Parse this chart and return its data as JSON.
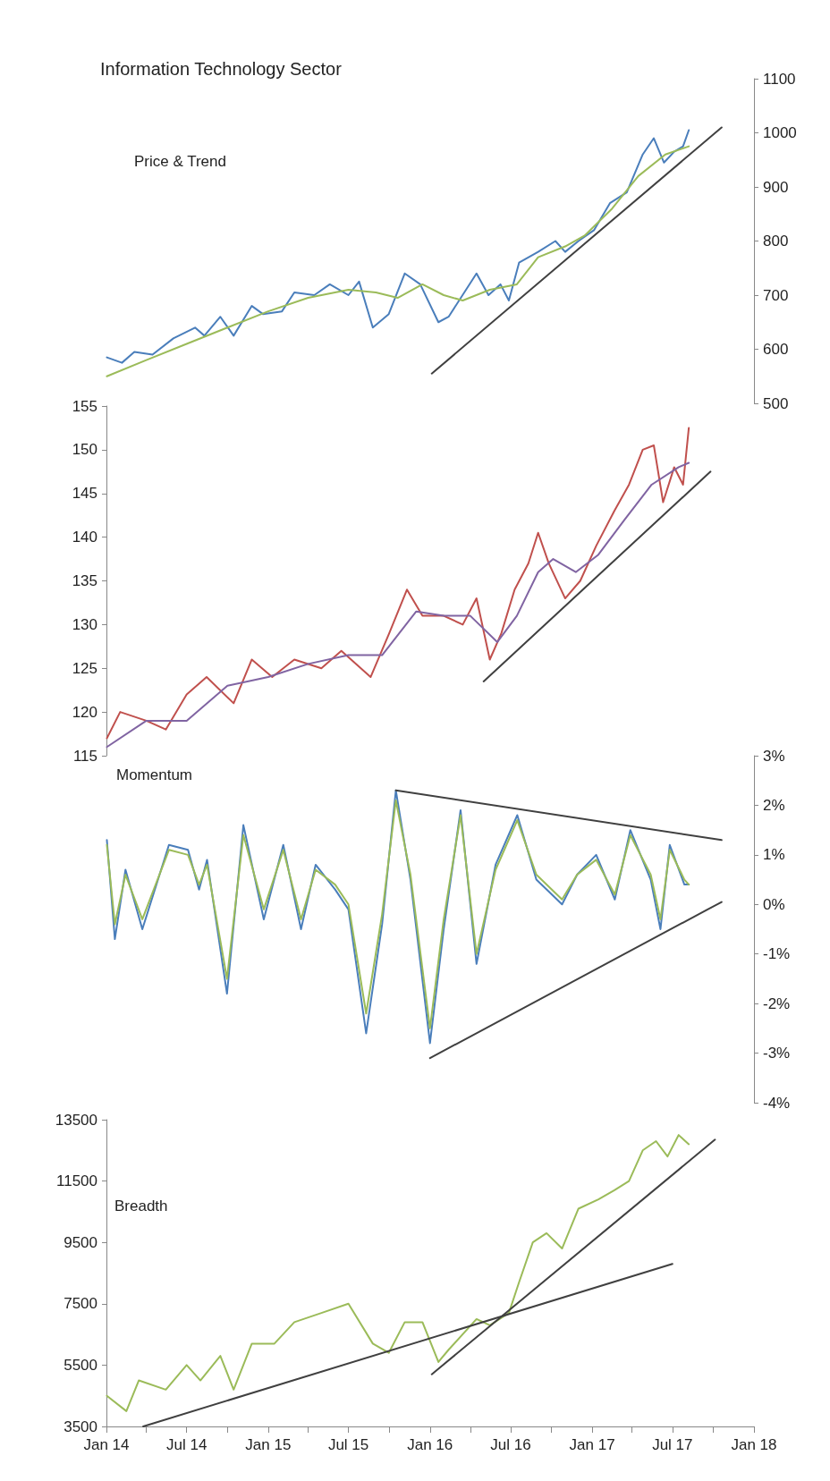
{
  "chart_data": [
    {
      "type": "line",
      "title": "Information Technology Sector",
      "annotations": [
        "Price & Trend"
      ],
      "xlim": [
        "2014-01",
        "2018-01"
      ],
      "y2lim": [
        500,
        1100
      ],
      "y2ticks": [
        500,
        600,
        700,
        800,
        900,
        1000,
        1100
      ],
      "tick_labels": "y",
      "series": [
        {
          "axis": "y2",
          "color": "#4a7ebb",
          "x": [
            "2014-01-02",
            "2014-02-05",
            "2014-03-05",
            "2014-04-15",
            "2014-06-01",
            "2014-07-20",
            "2014-08-10",
            "2014-09-15",
            "2014-10-15",
            "2014-11-25",
            "2014-12-20",
            "2015-02-01",
            "2015-03-01",
            "2015-04-15",
            "2015-05-20",
            "2015-07-01",
            "2015-07-25",
            "2015-08-25",
            "2015-09-30",
            "2015-11-05",
            "2015-12-10",
            "2016-01-20",
            "2016-02-12",
            "2016-04-15",
            "2016-05-12",
            "2016-06-08",
            "2016-06-27",
            "2016-07-20",
            "2016-09-01",
            "2016-10-10",
            "2016-11-01",
            "2016-12-01",
            "2017-01-05",
            "2017-02-10",
            "2017-03-20",
            "2017-04-25",
            "2017-05-20",
            "2017-06-12",
            "2017-07-05",
            "2017-07-25",
            "2017-08-07"
          ],
          "values": [
            585,
            575,
            595,
            590,
            620,
            640,
            625,
            660,
            625,
            680,
            665,
            670,
            705,
            700,
            720,
            700,
            725,
            640,
            665,
            740,
            720,
            650,
            660,
            740,
            700,
            720,
            690,
            760,
            780,
            800,
            780,
            800,
            820,
            870,
            890,
            960,
            990,
            945,
            965,
            975,
            1005
          ]
        },
        {
          "axis": "y2",
          "color": "#9bbb59",
          "x": [
            "2014-01-02",
            "2014-04-01",
            "2014-07-01",
            "2014-10-01",
            "2015-01-01",
            "2015-04-01",
            "2015-07-01",
            "2015-09-01",
            "2015-10-20",
            "2015-12-15",
            "2016-02-01",
            "2016-03-15",
            "2016-05-15",
            "2016-07-15",
            "2016-09-01",
            "2016-11-01",
            "2016-12-15",
            "2017-02-15",
            "2017-04-15",
            "2017-06-15",
            "2017-08-07"
          ],
          "values": [
            550,
            580,
            610,
            640,
            670,
            695,
            710,
            705,
            695,
            720,
            700,
            690,
            710,
            720,
            770,
            790,
            810,
            860,
            920,
            960,
            975
          ]
        },
        {
          "axis": "y2",
          "color": "#404040",
          "x": [
            "2016-01-05",
            "2017-10-20"
          ],
          "values": [
            555,
            1010
          ]
        }
      ]
    },
    {
      "type": "line",
      "xlim": [
        "2014-01",
        "2018-01"
      ],
      "ylim": [
        115,
        155
      ],
      "yticks": [
        115,
        120,
        125,
        130,
        135,
        140,
        145,
        150,
        155
      ],
      "tick_labels": "y",
      "series": [
        {
          "color": "#c0504d",
          "x": [
            "2014-01-02",
            "2014-02-01",
            "2014-04-01",
            "2014-05-15",
            "2014-07-01",
            "2014-08-15",
            "2014-10-15",
            "2014-11-25",
            "2015-01-10",
            "2015-03-01",
            "2015-05-01",
            "2015-06-15",
            "2015-08-20",
            "2015-10-01",
            "2015-11-10",
            "2015-12-15",
            "2016-02-01",
            "2016-03-15",
            "2016-04-15",
            "2016-05-15",
            "2016-06-10",
            "2016-07-10",
            "2016-08-10",
            "2016-09-01",
            "2016-09-25",
            "2016-11-01",
            "2016-12-05",
            "2017-01-10",
            "2017-02-20",
            "2017-03-25",
            "2017-04-25",
            "2017-05-20",
            "2017-06-10",
            "2017-07-05",
            "2017-07-25",
            "2017-08-07"
          ],
          "values": [
            117,
            120,
            119,
            118,
            122,
            124,
            121,
            126,
            124,
            126,
            125,
            127,
            124,
            129,
            134,
            131,
            131,
            130,
            133,
            126,
            129,
            134,
            137,
            140.5,
            137,
            133,
            135,
            139,
            143,
            146,
            150,
            150.5,
            144,
            148,
            146,
            152.5
          ]
        },
        {
          "color": "#8064a2",
          "x": [
            "2014-01-02",
            "2014-04-01",
            "2014-07-01",
            "2014-10-01",
            "2015-01-01",
            "2015-04-01",
            "2015-07-01",
            "2015-09-15",
            "2015-12-01",
            "2016-02-01",
            "2016-04-01",
            "2016-06-01",
            "2016-07-15",
            "2016-09-01",
            "2016-10-05",
            "2016-11-25",
            "2017-01-15",
            "2017-03-15",
            "2017-05-15",
            "2017-07-15",
            "2017-08-07"
          ],
          "values": [
            116,
            119,
            119,
            123,
            124,
            125.5,
            126.5,
            126.5,
            131.5,
            131,
            131,
            128,
            131,
            136,
            137.5,
            136,
            138,
            142,
            146,
            148,
            148.5
          ]
        },
        {
          "color": "#404040",
          "x": [
            "2016-05-01",
            "2017-09-25"
          ],
          "values": [
            123.5,
            147.5
          ]
        }
      ]
    },
    {
      "type": "line",
      "annotations": [
        "Momentum"
      ],
      "xlim": [
        "2014-01",
        "2018-01"
      ],
      "y2lim": [
        -4,
        3
      ],
      "y2ticks": [
        {
          "value": -4,
          "label": "-4%"
        },
        {
          "value": -3,
          "label": "-3%"
        },
        {
          "value": -2,
          "label": "-2%"
        },
        {
          "value": -1,
          "label": "-1%"
        },
        {
          "value": 0,
          "label": "0%"
        },
        {
          "value": 1,
          "label": "1%"
        },
        {
          "value": 2,
          "label": "2%"
        },
        {
          "value": 3,
          "label": "3%"
        }
      ],
      "tick_labels": "y",
      "series": [
        {
          "axis": "y2",
          "color": "#4a7ebb",
          "x": [
            "2014-01-02",
            "2014-01-20",
            "2014-02-13",
            "2014-03-23",
            "2014-05-22",
            "2014-07-04",
            "2014-07-29",
            "2014-08-16",
            "2014-09-30",
            "2014-11-06",
            "2014-12-22",
            "2015-02-04",
            "2015-03-16",
            "2015-04-18",
            "2015-06-01",
            "2015-07-01",
            "2015-08-10",
            "2015-09-15",
            "2015-10-16",
            "2015-11-18",
            "2016-01-01",
            "2016-02-01",
            "2016-03-10",
            "2016-04-15",
            "2016-05-28",
            "2016-07-16",
            "2016-08-28",
            "2016-10-25",
            "2016-11-28",
            "2017-01-10",
            "2017-02-21",
            "2017-03-28",
            "2017-05-13",
            "2017-06-04",
            "2017-06-25",
            "2017-07-28",
            "2017-08-07"
          ],
          "values": [
            1.3,
            -0.7,
            0.7,
            -0.5,
            1.2,
            1.1,
            0.3,
            0.9,
            -1.8,
            1.6,
            -0.3,
            1.2,
            -0.5,
            0.8,
            0.3,
            -0.1,
            -2.6,
            -0.4,
            2.3,
            0.5,
            -2.8,
            -0.5,
            1.9,
            -1.2,
            0.8,
            1.8,
            0.5,
            0.0,
            0.6,
            1.0,
            0.1,
            1.5,
            0.5,
            -0.5,
            1.2,
            0.4,
            0.4
          ]
        },
        {
          "axis": "y2",
          "color": "#9bbb59",
          "x": [
            "2014-01-02",
            "2014-01-20",
            "2014-02-13",
            "2014-03-23",
            "2014-05-22",
            "2014-07-04",
            "2014-07-29",
            "2014-08-16",
            "2014-09-30",
            "2014-11-06",
            "2014-12-22",
            "2015-02-04",
            "2015-03-16",
            "2015-04-18",
            "2015-06-01",
            "2015-07-01",
            "2015-08-10",
            "2015-09-15",
            "2015-10-16",
            "2015-11-18",
            "2016-01-01",
            "2016-02-01",
            "2016-03-10",
            "2016-04-15",
            "2016-05-28",
            "2016-07-16",
            "2016-08-28",
            "2016-10-25",
            "2016-11-28",
            "2017-01-10",
            "2017-02-21",
            "2017-03-28",
            "2017-05-13",
            "2017-06-04",
            "2017-06-25",
            "2017-07-28",
            "2017-08-07"
          ],
          "values": [
            1.2,
            -0.4,
            0.6,
            -0.3,
            1.1,
            1.0,
            0.4,
            0.8,
            -1.5,
            1.4,
            -0.1,
            1.1,
            -0.3,
            0.7,
            0.4,
            0.0,
            -2.2,
            -0.2,
            2.1,
            0.6,
            -2.5,
            -0.3,
            1.8,
            -1.0,
            0.7,
            1.7,
            0.6,
            0.1,
            0.6,
            0.9,
            0.2,
            1.4,
            0.6,
            -0.3,
            1.1,
            0.5,
            0.4
          ]
        },
        {
          "axis": "y2",
          "color": "#404040",
          "x": [
            "2015-10-16",
            "2017-10-20"
          ],
          "values": [
            2.3,
            1.3
          ]
        },
        {
          "axis": "y2",
          "color": "#404040",
          "x": [
            "2016-01-01",
            "2017-10-20"
          ],
          "values": [
            -3.1,
            0.05
          ]
        }
      ]
    },
    {
      "type": "line",
      "annotations": [
        "Breadth"
      ],
      "xlim": [
        "2014-01",
        "2018-01"
      ],
      "ylim": [
        3500,
        13500
      ],
      "yticks": [
        3500,
        5500,
        7500,
        9500,
        11500,
        13500
      ],
      "xticks": [
        {
          "value": "2014-01",
          "label": "Jan 14"
        },
        {
          "value": "2014-04",
          "label": null
        },
        {
          "value": "2014-07",
          "label": "Jul 14"
        },
        {
          "value": "2014-10",
          "label": null
        },
        {
          "value": "2015-01",
          "label": "Jan 15"
        },
        {
          "value": "2015-04",
          "label": null
        },
        {
          "value": "2015-07",
          "label": "Jul 15"
        },
        {
          "value": "2015-10",
          "label": null
        },
        {
          "value": "2016-01",
          "label": "Jan 16"
        },
        {
          "value": "2016-04",
          "label": null
        },
        {
          "value": "2016-07",
          "label": "Jul 16"
        },
        {
          "value": "2016-10",
          "label": null
        },
        {
          "value": "2017-01",
          "label": "Jan 17"
        },
        {
          "value": "2017-04",
          "label": null
        },
        {
          "value": "2017-07",
          "label": "Jul 17"
        },
        {
          "value": "2017-10",
          "label": null
        },
        {
          "value": "2018-01",
          "label": "Jan 18"
        }
      ],
      "series": [
        {
          "color": "#9bbb59",
          "x": [
            "2014-01-02",
            "2014-02-15",
            "2014-03-15",
            "2014-05-15",
            "2014-07-01",
            "2014-08-01",
            "2014-09-15",
            "2014-10-15",
            "2014-11-25",
            "2015-01-15",
            "2015-03-01",
            "2015-05-01",
            "2015-07-01",
            "2015-08-25",
            "2015-09-30",
            "2015-11-05",
            "2015-12-15",
            "2016-01-20",
            "2016-02-12",
            "2016-04-15",
            "2016-05-15",
            "2016-06-27",
            "2016-07-20",
            "2016-08-20",
            "2016-09-20",
            "2016-10-25",
            "2016-12-01",
            "2017-01-15",
            "2017-02-20",
            "2017-03-25",
            "2017-04-25",
            "2017-05-25",
            "2017-06-20",
            "2017-07-15",
            "2017-08-07"
          ],
          "values": [
            4500,
            4000,
            5000,
            4700,
            5500,
            5000,
            5800,
            4700,
            6200,
            6200,
            6900,
            7200,
            7500,
            6200,
            5900,
            6900,
            6900,
            5600,
            6000,
            7000,
            6800,
            7200,
            8200,
            9500,
            9800,
            9300,
            10600,
            10900,
            11200,
            11500,
            12500,
            12800,
            12300,
            13000,
            12700
          ]
        },
        {
          "color": "#404040",
          "x": [
            "2014-03-25",
            "2017-07-01"
          ],
          "values": [
            3500,
            8800
          ]
        },
        {
          "color": "#404040",
          "x": [
            "2016-01-05",
            "2017-10-05"
          ],
          "values": [
            5200,
            12850
          ]
        }
      ]
    }
  ]
}
